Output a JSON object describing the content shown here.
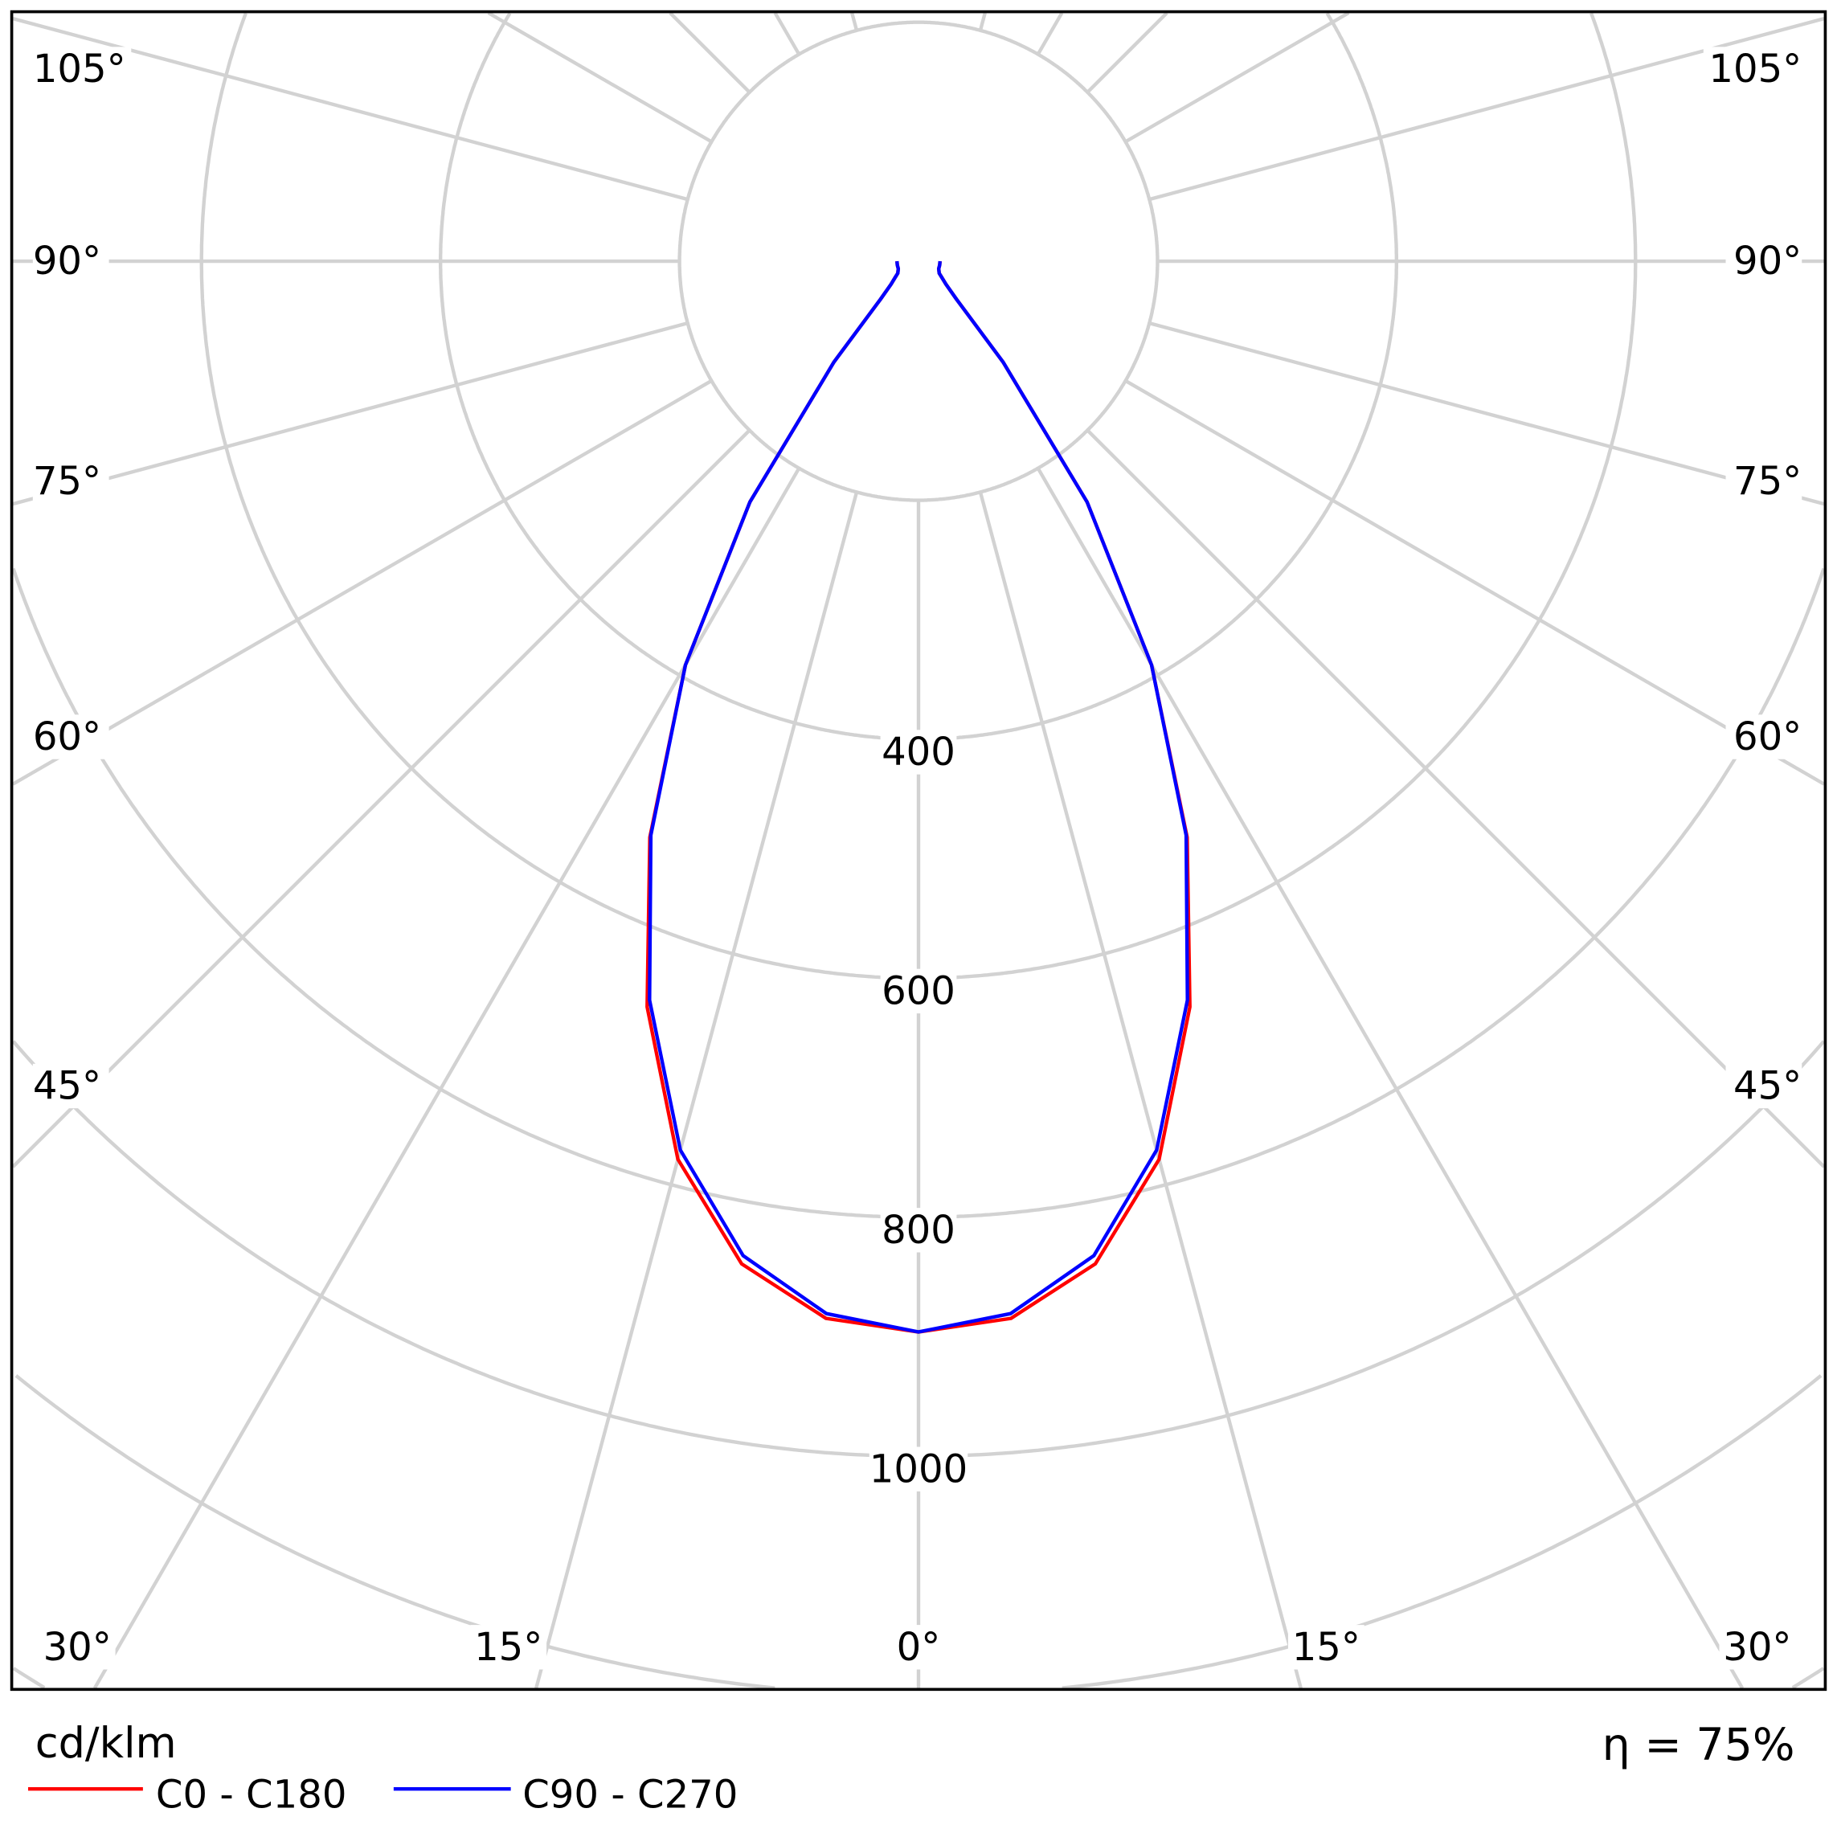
{
  "chart_data": {
    "type": "polar",
    "title": "",
    "unit_label": "cd/klm",
    "efficiency_label": "η = 75%",
    "radial_ticks": [
      400,
      600,
      800,
      1000
    ],
    "radial_grid": [
      200,
      400,
      600,
      800,
      1000,
      1200,
      1400
    ],
    "angle_tick_labels": {
      "left": [
        "105°",
        "90°",
        "75°",
        "60°",
        "45°"
      ],
      "right": [
        "105°",
        "90°",
        "75°",
        "60°",
        "45°"
      ],
      "bottom": [
        "30°",
        "15°",
        "0°",
        "15°",
        "30°"
      ]
    },
    "angles_deg": [
      0,
      5,
      10,
      15,
      20,
      25,
      30,
      35,
      40,
      45,
      50,
      55,
      60,
      70,
      80,
      90
    ],
    "series": [
      {
        "name": "C0 - C180",
        "color": "#ff0000",
        "values": [
          896,
          888,
          852,
          778,
          664,
          532,
          390,
          246,
          110,
          45,
          30,
          24,
          20,
          18,
          18,
          18
        ]
      },
      {
        "name": "C90 - C270",
        "color": "#0000ff",
        "values": [
          896,
          884,
          845,
          770,
          658,
          530,
          390,
          246,
          110,
          45,
          30,
          24,
          20,
          18,
          18,
          18
        ]
      }
    ]
  }
}
